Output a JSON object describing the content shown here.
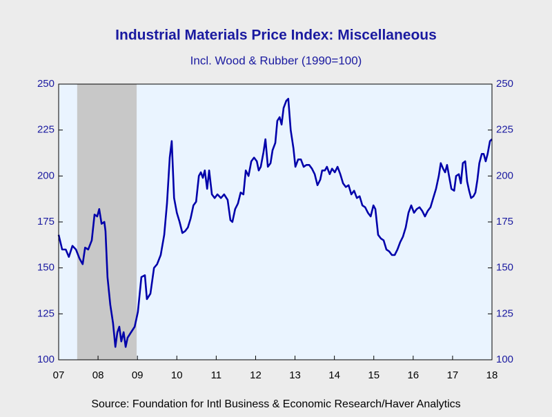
{
  "chart_data": {
    "type": "line",
    "title": "Industrial Materials Price Index: Miscellaneous",
    "subtitle": "Incl. Wood & Rubber (1990=100)",
    "source": "Source:  Foundation for Intl Business & Economic Research/Haver Analytics",
    "xlim": [
      2007,
      2018
    ],
    "xticks": [
      {
        "value": 2007,
        "label": "07"
      },
      {
        "value": 2008,
        "label": "08"
      },
      {
        "value": 2009,
        "label": "09"
      },
      {
        "value": 2010,
        "label": "10"
      },
      {
        "value": 2011,
        "label": "11"
      },
      {
        "value": 2012,
        "label": "12"
      },
      {
        "value": 2013,
        "label": "13"
      },
      {
        "value": 2014,
        "label": "14"
      },
      {
        "value": 2015,
        "label": "15"
      },
      {
        "value": 2016,
        "label": "16"
      },
      {
        "value": 2017,
        "label": "17"
      },
      {
        "value": 2018,
        "label": "18"
      }
    ],
    "ylim": [
      100,
      250
    ],
    "yticks": [
      100,
      125,
      150,
      175,
      200,
      225,
      250
    ],
    "recession": [
      2007.47,
      2008.98
    ],
    "x": [
      2007.0,
      2007.09,
      2007.18,
      2007.26,
      2007.35,
      2007.44,
      2007.53,
      2007.61,
      2007.67,
      2007.75,
      2007.84,
      2007.91,
      2007.98,
      2008.03,
      2008.09,
      2008.16,
      2008.19,
      2008.24,
      2008.31,
      2008.38,
      2008.44,
      2008.49,
      2008.54,
      2008.59,
      2008.65,
      2008.7,
      2008.75,
      2008.84,
      2008.93,
      2009.01,
      2009.1,
      2009.19,
      2009.24,
      2009.33,
      2009.42,
      2009.5,
      2009.59,
      2009.68,
      2009.75,
      2009.82,
      2009.87,
      2009.93,
      2010.0,
      2010.07,
      2010.14,
      2010.21,
      2010.28,
      2010.35,
      2010.42,
      2010.49,
      2010.56,
      2010.61,
      2010.66,
      2010.71,
      2010.77,
      2010.82,
      2010.89,
      2010.96,
      2011.03,
      2011.12,
      2011.2,
      2011.29,
      2011.36,
      2011.41,
      2011.48,
      2011.55,
      2011.62,
      2011.69,
      2011.75,
      2011.82,
      2011.89,
      2011.96,
      2012.03,
      2012.08,
      2012.13,
      2012.2,
      2012.25,
      2012.31,
      2012.38,
      2012.43,
      2012.5,
      2012.55,
      2012.61,
      2012.66,
      2012.71,
      2012.78,
      2012.83,
      2012.89,
      2012.96,
      2013.01,
      2013.08,
      2013.15,
      2013.22,
      2013.29,
      2013.36,
      2013.43,
      2013.5,
      2013.57,
      2013.64,
      2013.69,
      2013.76,
      2013.81,
      2013.88,
      2013.94,
      2014.01,
      2014.08,
      2014.15,
      2014.22,
      2014.29,
      2014.36,
      2014.43,
      2014.5,
      2014.57,
      2014.64,
      2014.71,
      2014.78,
      2014.85,
      2014.92,
      2014.99,
      2015.04,
      2015.11,
      2015.18,
      2015.25,
      2015.32,
      2015.39,
      2015.46,
      2015.53,
      2015.6,
      2015.67,
      2015.74,
      2015.81,
      2015.88,
      2015.95,
      2016.02,
      2016.09,
      2016.16,
      2016.23,
      2016.3,
      2016.37,
      2016.44,
      2016.51,
      2016.58,
      2016.65,
      2016.7,
      2016.76,
      2016.81,
      2016.86,
      2016.91,
      2016.97,
      2017.04,
      2017.09,
      2017.16,
      2017.21,
      2017.26,
      2017.32,
      2017.37,
      2017.42,
      2017.47,
      2017.53,
      2017.58,
      2017.63,
      2017.68,
      2017.74,
      2017.79,
      2017.84,
      2017.89,
      2017.95,
      2018.0
    ],
    "series": [
      {
        "color": "#0000aa",
        "values": [
          168,
          160,
          160,
          156,
          162,
          160,
          155,
          152,
          161,
          160,
          165,
          179,
          178,
          182,
          174,
          175,
          170,
          145,
          130,
          120,
          107,
          115,
          118,
          110,
          115,
          107,
          112,
          115,
          118,
          126,
          145,
          146,
          133,
          136,
          150,
          152,
          157,
          168,
          185,
          210,
          219,
          188,
          180,
          175,
          169,
          170,
          172,
          177,
          184,
          186,
          200,
          202,
          199,
          203,
          193,
          203,
          190,
          188,
          190,
          188,
          190,
          187,
          176,
          175,
          182,
          185,
          191,
          190,
          203,
          200,
          208,
          210,
          208,
          203,
          205,
          213,
          220,
          205,
          207,
          214,
          218,
          230,
          232,
          228,
          237,
          241,
          242,
          225,
          215,
          205,
          209,
          209,
          205,
          206,
          206,
          204,
          201,
          195,
          198,
          203,
          203,
          205,
          201,
          204,
          202,
          205,
          201,
          196,
          194,
          195,
          190,
          192,
          188,
          189,
          184,
          183,
          180,
          178,
          184,
          182,
          168,
          166,
          165,
          160,
          159,
          157,
          157,
          160,
          164,
          167,
          172,
          180,
          184,
          180,
          182,
          183,
          181,
          178,
          181,
          183,
          188,
          193,
          200,
          207,
          204,
          202,
          206,
          200,
          193,
          192,
          200,
          201,
          196,
          207,
          208,
          197,
          192,
          188,
          189,
          191,
          198,
          207,
          212,
          212,
          208,
          212,
          219,
          220
        ]
      }
    ]
  }
}
